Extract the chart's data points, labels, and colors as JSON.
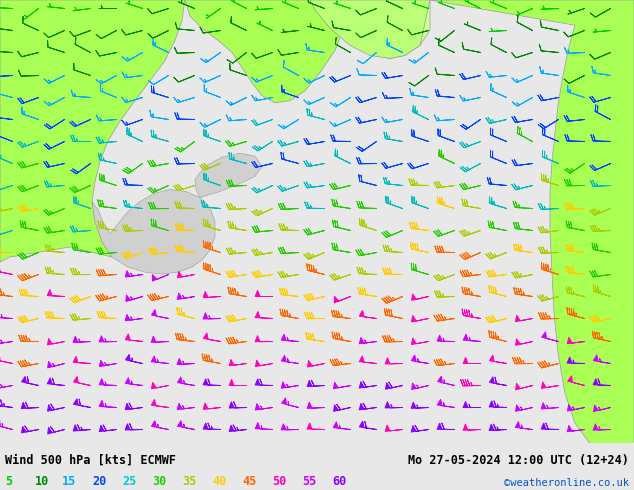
{
  "title_left": "Wind 500 hPa [kts] ECMWF",
  "title_right": "Mo 27-05-2024 12:00 UTC (12+24)",
  "watermark": "©weatheronline.co.uk",
  "legend_values": [
    "5",
    "10",
    "15",
    "20",
    "25",
    "30",
    "35",
    "40",
    "45",
    "50",
    "55",
    "60"
  ],
  "legend_colors": [
    "#00cc00",
    "#008800",
    "#00aaff",
    "#0044ff",
    "#00cccc",
    "#22cc00",
    "#aacc00",
    "#ffcc00",
    "#ff6600",
    "#ff00bb",
    "#cc00ff",
    "#8800ff"
  ],
  "figsize": [
    6.34,
    4.9
  ],
  "dpi": 100,
  "bg_color": "#e8e8e8",
  "land_green": "#aaff55",
  "sea_color": "#d4d4d4",
  "border_color": "#999999",
  "text_color": "#000000",
  "watermark_color": "#0055cc"
}
